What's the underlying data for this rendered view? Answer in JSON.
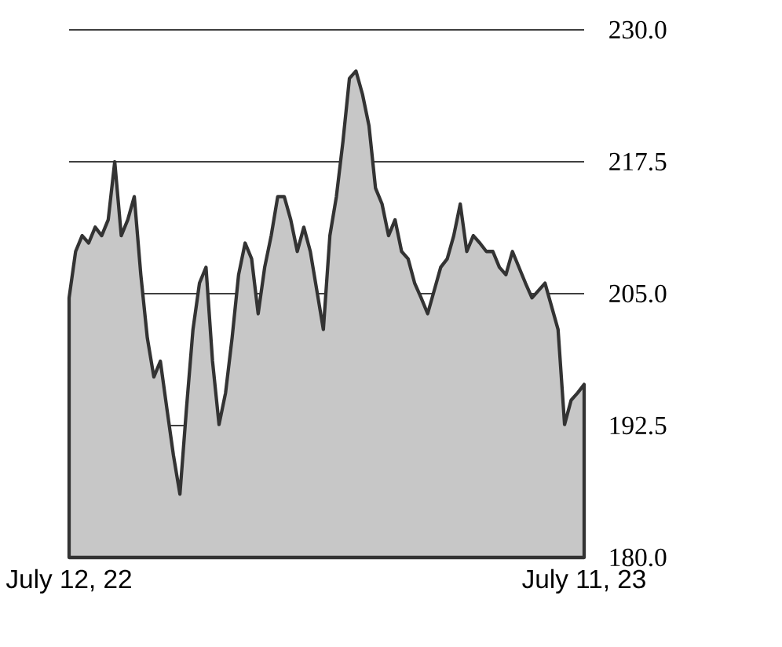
{
  "chart_data": {
    "type": "area",
    "categories": [
      "July 12, 22",
      null,
      null,
      null,
      null,
      null,
      null,
      null,
      null,
      null,
      null,
      null,
      null,
      null,
      null,
      null,
      null,
      null,
      null,
      null,
      null,
      null,
      null,
      null,
      null,
      null,
      null,
      null,
      null,
      null,
      null,
      null,
      null,
      null,
      null,
      null,
      null,
      null,
      null,
      null,
      null,
      null,
      null,
      null,
      null,
      null,
      null,
      null,
      null,
      null,
      null,
      null,
      null,
      null,
      null,
      null,
      null,
      null,
      null,
      null,
      null,
      null,
      null,
      null,
      null,
      null,
      null,
      null,
      null,
      null,
      null,
      null,
      null,
      null,
      null,
      null,
      null,
      null,
      null,
      "July 11, 23"
    ],
    "series": [
      {
        "color": "#c7c7c7",
        "values": [
          204.6,
          209,
          210.5,
          209.8,
          211.3,
          210.5,
          212,
          217.5,
          210.5,
          212,
          214.2,
          206.8,
          200.8,
          197.1,
          198.6,
          194.1,
          189.7,
          186,
          194.1,
          201.6,
          206,
          207.5,
          198.6,
          192.6,
          195.6,
          200.8,
          206.8,
          209.8,
          208.3,
          203.1,
          207.5,
          210.5,
          214.2,
          214.2,
          212,
          209,
          211.3,
          209,
          205.3,
          201.6,
          210.5,
          214.2,
          219.4,
          225.4,
          226.1,
          223.9,
          220.9,
          215,
          213.5,
          210.5,
          212,
          209,
          208.3,
          206,
          204.6,
          203.1,
          205.3,
          207.5,
          208.3,
          210.5,
          213.5,
          209,
          210.5,
          209.8,
          209,
          209,
          207.5,
          206.8,
          209,
          207.5,
          206,
          204.6,
          205.3,
          206,
          203.8,
          201.6,
          192.6,
          194.9,
          195.6,
          196.4
        ]
      }
    ],
    "ylim": [
      180,
      230
    ],
    "yticks": [
      {
        "value": 180,
        "label": "180.0"
      },
      192.5,
      {
        "value": 205,
        "label": "205.0"
      },
      217.5,
      {
        "value": 230,
        "label": "230.0"
      }
    ],
    "grid": "y"
  }
}
